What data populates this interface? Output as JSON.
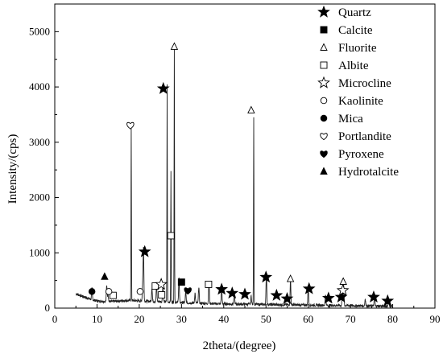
{
  "chart_data": {
    "type": "line",
    "xlabel": "2theta/(degree)",
    "ylabel": "Intensity/(cps)",
    "xlim": [
      0,
      90
    ],
    "ylim": [
      0,
      5500
    ],
    "xticks": [
      0,
      10,
      20,
      30,
      40,
      50,
      60,
      70,
      80,
      90
    ],
    "yticks": [
      0,
      1000,
      2000,
      3000,
      4000,
      5000
    ],
    "grid": false,
    "legend_position": "top-right",
    "series": [
      {
        "baseline": [
          [
            5,
            260
          ],
          [
            6,
            230
          ],
          [
            7,
            200
          ],
          [
            8,
            175
          ],
          [
            9,
            150
          ],
          [
            10,
            130
          ],
          [
            12,
            120
          ],
          [
            14,
            120
          ],
          [
            16,
            135
          ],
          [
            18,
            140
          ],
          [
            20,
            130
          ],
          [
            22,
            125
          ],
          [
            24,
            120
          ],
          [
            26,
            115
          ],
          [
            28,
            110
          ],
          [
            30,
            100
          ],
          [
            34,
            90
          ],
          [
            38,
            80
          ],
          [
            42,
            75
          ],
          [
            46,
            70
          ],
          [
            50,
            65
          ],
          [
            55,
            60
          ],
          [
            60,
            55
          ],
          [
            65,
            50
          ],
          [
            70,
            45
          ],
          [
            75,
            40
          ],
          [
            80,
            35
          ]
        ],
        "peaks": [
          [
            8.8,
            200
          ],
          [
            12.3,
            300
          ],
          [
            12.6,
            150
          ],
          [
            18.1,
            3200
          ],
          [
            20.8,
            300
          ],
          [
            21.0,
            950
          ],
          [
            23.0,
            250
          ],
          [
            24.1,
            300
          ],
          [
            25.6,
            300
          ],
          [
            26.6,
            3950
          ],
          [
            27.5,
            2380
          ],
          [
            28.3,
            4700
          ],
          [
            29.4,
            450
          ],
          [
            31.0,
            200
          ],
          [
            33.2,
            180
          ],
          [
            34.1,
            300
          ],
          [
            36.5,
            400
          ],
          [
            39.5,
            300
          ],
          [
            42.5,
            200
          ],
          [
            46.5,
            150
          ],
          [
            47.1,
            3400
          ],
          [
            50.1,
            550
          ],
          [
            55.8,
            450
          ],
          [
            60.0,
            340
          ],
          [
            64.1,
            200
          ],
          [
            68.1,
            310
          ],
          [
            68.4,
            350
          ],
          [
            73.5,
            130
          ],
          [
            75.7,
            180
          ],
          [
            79.0,
            120
          ]
        ]
      }
    ],
    "legend": [
      {
        "label": "Quartz",
        "marker": "star-filled"
      },
      {
        "label": "Calcite",
        "marker": "square-filled"
      },
      {
        "label": "Fluorite",
        "marker": "triangle-open"
      },
      {
        "label": "Albite",
        "marker": "square-open"
      },
      {
        "label": "Microcline",
        "marker": "star-open"
      },
      {
        "label": "Kaolinite",
        "marker": "circle-open"
      },
      {
        "label": "Mica",
        "marker": "circle-filled"
      },
      {
        "label": "Portlandite",
        "marker": "heart-open"
      },
      {
        "label": "Pyroxene",
        "marker": "heart-filled"
      },
      {
        "label": "Hydrotalcite",
        "marker": "triangle-filled"
      }
    ],
    "annotations": [
      {
        "marker": "star-filled",
        "x": 21.3,
        "y": 1020
      },
      {
        "marker": "star-filled",
        "x": 25.7,
        "y": 3970
      },
      {
        "marker": "star-filled",
        "x": 39.5,
        "y": 340
      },
      {
        "marker": "star-filled",
        "x": 42.0,
        "y": 270
      },
      {
        "marker": "star-filled",
        "x": 45.0,
        "y": 250
      },
      {
        "marker": "star-filled",
        "x": 50.0,
        "y": 560
      },
      {
        "marker": "star-filled",
        "x": 52.5,
        "y": 230
      },
      {
        "marker": "star-filled",
        "x": 55.0,
        "y": 170
      },
      {
        "marker": "star-filled",
        "x": 60.2,
        "y": 350
      },
      {
        "marker": "star-filled",
        "x": 64.8,
        "y": 180
      },
      {
        "marker": "star-filled",
        "x": 67.8,
        "y": 200
      },
      {
        "marker": "star-filled",
        "x": 75.5,
        "y": 200
      },
      {
        "marker": "star-filled",
        "x": 78.8,
        "y": 130
      },
      {
        "marker": "square-filled",
        "x": 30.0,
        "y": 470
      },
      {
        "marker": "triangle-open",
        "x": 28.3,
        "y": 4730
      },
      {
        "marker": "triangle-open",
        "x": 46.5,
        "y": 3580
      },
      {
        "marker": "triangle-open",
        "x": 55.8,
        "y": 530
      },
      {
        "marker": "triangle-open",
        "x": 68.3,
        "y": 480
      },
      {
        "marker": "square-open",
        "x": 13.8,
        "y": 230
      },
      {
        "marker": "square-open",
        "x": 23.8,
        "y": 400
      },
      {
        "marker": "square-open",
        "x": 25.3,
        "y": 240
      },
      {
        "marker": "square-open",
        "x": 27.5,
        "y": 1310
      },
      {
        "marker": "square-open",
        "x": 36.4,
        "y": 430
      },
      {
        "marker": "star-open",
        "x": 25.2,
        "y": 430
      },
      {
        "marker": "star-open",
        "x": 68.2,
        "y": 320
      },
      {
        "marker": "circle-open",
        "x": 12.8,
        "y": 300
      },
      {
        "marker": "circle-open",
        "x": 20.2,
        "y": 300
      },
      {
        "marker": "circle-filled",
        "x": 8.8,
        "y": 300
      },
      {
        "marker": "heart-open",
        "x": 17.9,
        "y": 3310
      },
      {
        "marker": "heart-filled",
        "x": 31.5,
        "y": 320
      },
      {
        "marker": "triangle-filled",
        "x": 11.8,
        "y": 570
      }
    ]
  }
}
